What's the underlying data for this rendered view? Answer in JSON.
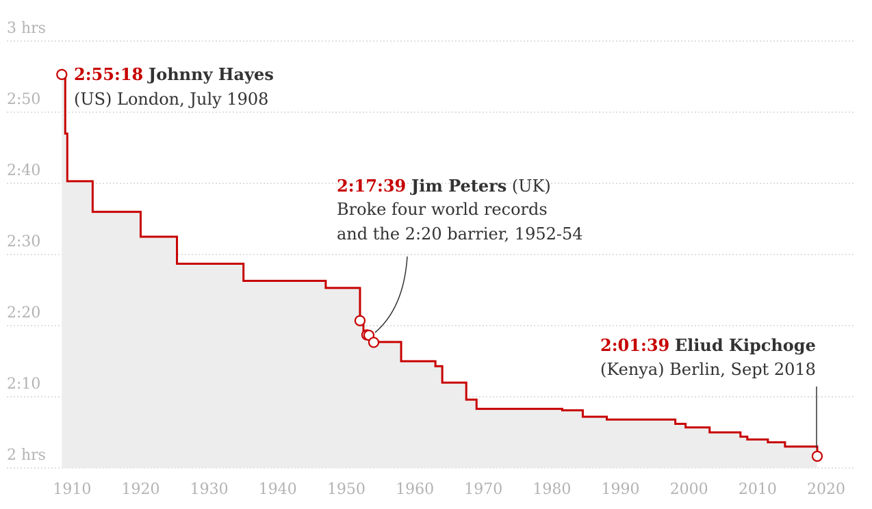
{
  "chart_data": {
    "type": "line",
    "step": true,
    "xlim": [
      1908,
      2020
    ],
    "ylim_minutes": [
      120,
      180
    ],
    "x_ticks": [
      1910,
      1920,
      1930,
      1940,
      1950,
      1960,
      1970,
      1980,
      1990,
      2000,
      2010,
      2020
    ],
    "y_ticks": [
      {
        "minutes": 180,
        "label": "3 hrs"
      },
      {
        "minutes": 170,
        "label": "2:50"
      },
      {
        "minutes": 160,
        "label": "2:40"
      },
      {
        "minutes": 150,
        "label": "2:30"
      },
      {
        "minutes": 140,
        "label": "2:20"
      },
      {
        "minutes": 130,
        "label": "2:10"
      },
      {
        "minutes": 120,
        "label": "2 hrs"
      }
    ],
    "grid": true,
    "colors": {
      "line": "#c70000",
      "area": "#ededed",
      "grid": "#cccccc",
      "tick_text": "#b3b3b3",
      "annotation_text": "#333333"
    },
    "series": [
      {
        "values": [
          {
            "year": 1908.5,
            "minutes": 175.3
          },
          {
            "year": 1909.0,
            "minutes": 167.0
          },
          {
            "year": 1909.3,
            "minutes": 160.3
          },
          {
            "year": 1913.0,
            "minutes": 156.0
          },
          {
            "year": 1920.0,
            "minutes": 152.5
          },
          {
            "year": 1925.3,
            "minutes": 148.7
          },
          {
            "year": 1935.0,
            "minutes": 146.3
          },
          {
            "year": 1947.0,
            "minutes": 145.3
          },
          {
            "year": 1952.0,
            "minutes": 140.7
          },
          {
            "year": 1952.5,
            "minutes": 138.7
          },
          {
            "year": 1953.5,
            "minutes": 137.7
          },
          {
            "year": 1958.0,
            "minutes": 135.0
          },
          {
            "year": 1963.0,
            "minutes": 134.3
          },
          {
            "year": 1964.0,
            "minutes": 132.0
          },
          {
            "year": 1967.5,
            "minutes": 129.6
          },
          {
            "year": 1969.0,
            "minutes": 128.3
          },
          {
            "year": 1981.5,
            "minutes": 128.1
          },
          {
            "year": 1984.5,
            "minutes": 127.2
          },
          {
            "year": 1988.0,
            "minutes": 126.8
          },
          {
            "year": 1998.0,
            "minutes": 126.2
          },
          {
            "year": 1999.5,
            "minutes": 125.7
          },
          {
            "year": 2003.0,
            "minutes": 125.0
          },
          {
            "year": 2007.5,
            "minutes": 124.4
          },
          {
            "year": 2008.5,
            "minutes": 124.0
          },
          {
            "year": 2011.5,
            "minutes": 123.6
          },
          {
            "year": 2014.0,
            "minutes": 123.0
          },
          {
            "year": 2018.7,
            "minutes": 121.65
          }
        ]
      }
    ],
    "markers": [
      {
        "year": 1908.5,
        "minutes": 175.3
      },
      {
        "year": 1952.0,
        "minutes": 140.7
      },
      {
        "year": 1953.0,
        "minutes": 138.7
      },
      {
        "year": 1953.3,
        "minutes": 138.65
      },
      {
        "year": 1954.0,
        "minutes": 137.65
      },
      {
        "year": 2018.7,
        "minutes": 121.65
      }
    ],
    "annotations": [
      {
        "time": "2:55:18",
        "name": "Johnny Hayes",
        "rest": "",
        "lines": [
          "(US) London, July 1908"
        ]
      },
      {
        "time": "2:17:39",
        "name": "Jim Peters",
        "rest": " (UK)",
        "lines": [
          "Broke four world records",
          "and the 2:20 barrier, 1952-54"
        ]
      },
      {
        "time": "2:01:39",
        "name": "Eliud Kipchoge",
        "rest": "",
        "lines": [
          "(Kenya) Berlin, Sept 2018"
        ]
      }
    ]
  }
}
